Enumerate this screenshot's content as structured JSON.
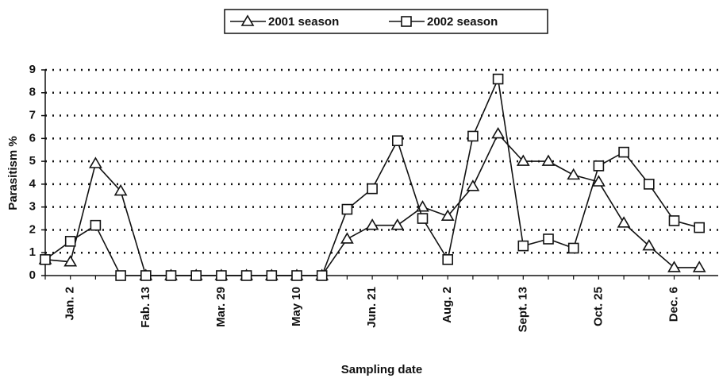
{
  "chart_data": {
    "type": "line",
    "x_label": "Sampling date",
    "y_label": "Parasitism %",
    "categories": [
      null,
      "Jan. 2",
      null,
      null,
      "Fab. 13",
      null,
      null,
      "Mar. 29",
      null,
      null,
      "May 10",
      null,
      null,
      "Jun. 21",
      null,
      null,
      "Aug. 2",
      null,
      null,
      "Sept. 13",
      null,
      null,
      "Oct. 25",
      null,
      null,
      "Dec. 6",
      null
    ],
    "series": [
      {
        "name": "2001 season",
        "color": "#111111",
        "marker": "triangle",
        "values": [
          0.7,
          0.6,
          4.9,
          3.7,
          0,
          0,
          0,
          0,
          0,
          0,
          0,
          0,
          1.6,
          2.2,
          2.2,
          3.0,
          2.6,
          3.9,
          6.2,
          5.0,
          5.0,
          4.4,
          4.1,
          2.3,
          1.3,
          0.35,
          0.35
        ]
      },
      {
        "name": "2002 season",
        "color": "#111111",
        "marker": "square",
        "values": [
          0.7,
          1.5,
          2.2,
          0,
          0,
          0,
          0,
          0,
          0,
          0,
          0,
          0,
          2.9,
          3.8,
          5.9,
          2.5,
          0.7,
          6.1,
          8.6,
          1.3,
          1.6,
          1.2,
          4.8,
          5.4,
          4.0,
          2.4,
          2.1
        ]
      }
    ],
    "ylim": [
      0,
      9
    ],
    "yticks": [
      0,
      1,
      2,
      3,
      4,
      5,
      6,
      7,
      8,
      9
    ],
    "grid": true,
    "legend": "top"
  }
}
